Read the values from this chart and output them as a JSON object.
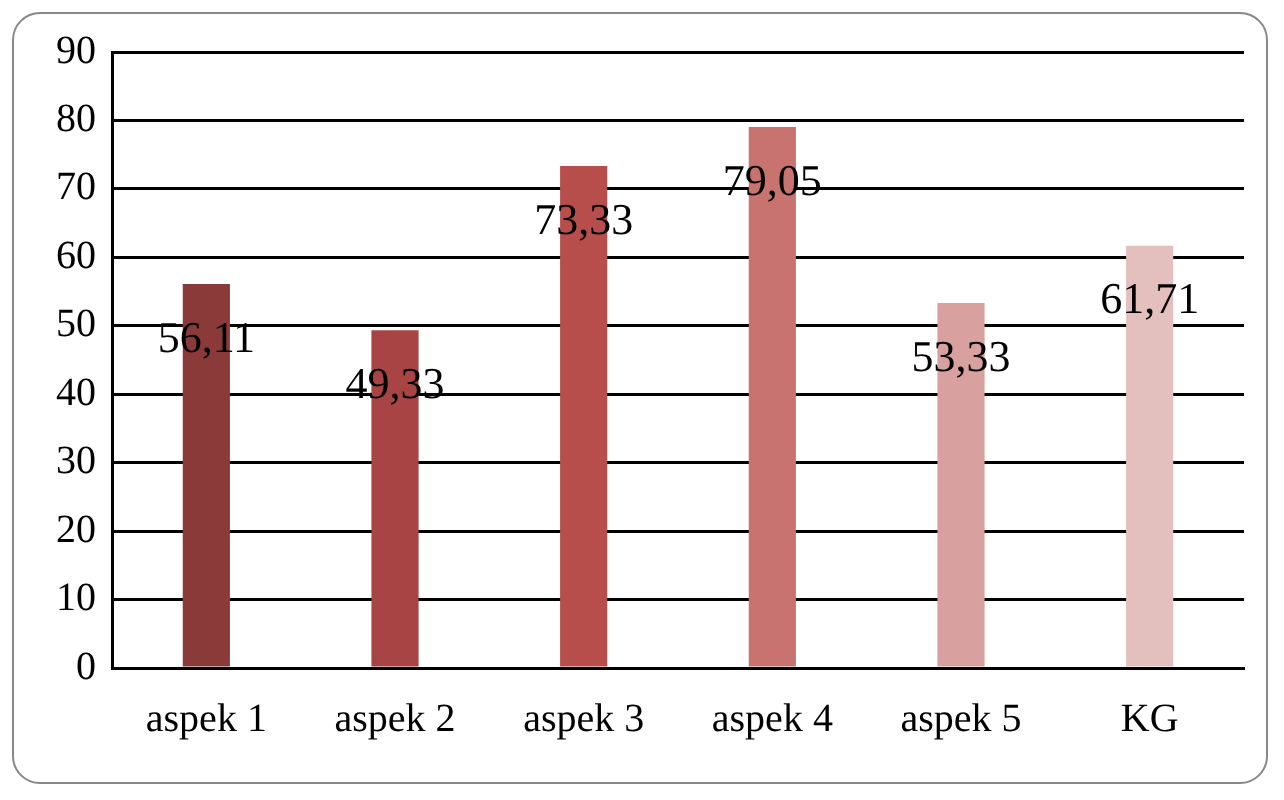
{
  "chart_data": {
    "type": "bar",
    "categories": [
      "aspek 1",
      "aspek 2",
      "aspek 3",
      "aspek 4",
      "aspek 5",
      "KG"
    ],
    "values": [
      56.11,
      49.33,
      73.33,
      79.05,
      53.33,
      61.71
    ],
    "colors": [
      "#8b3a3a",
      "#a84444",
      "#b84e4b",
      "#c97370",
      "#d8a19f",
      "#e3c0be"
    ],
    "value_labels": [
      "56,11",
      "49,33",
      "73,33",
      "79,05",
      "53,33",
      "61,71"
    ],
    "ylim": [
      0,
      90
    ],
    "yticks": [
      0,
      10,
      20,
      30,
      40,
      50,
      60,
      70,
      80,
      90
    ],
    "grid": "y",
    "legend": false
  }
}
